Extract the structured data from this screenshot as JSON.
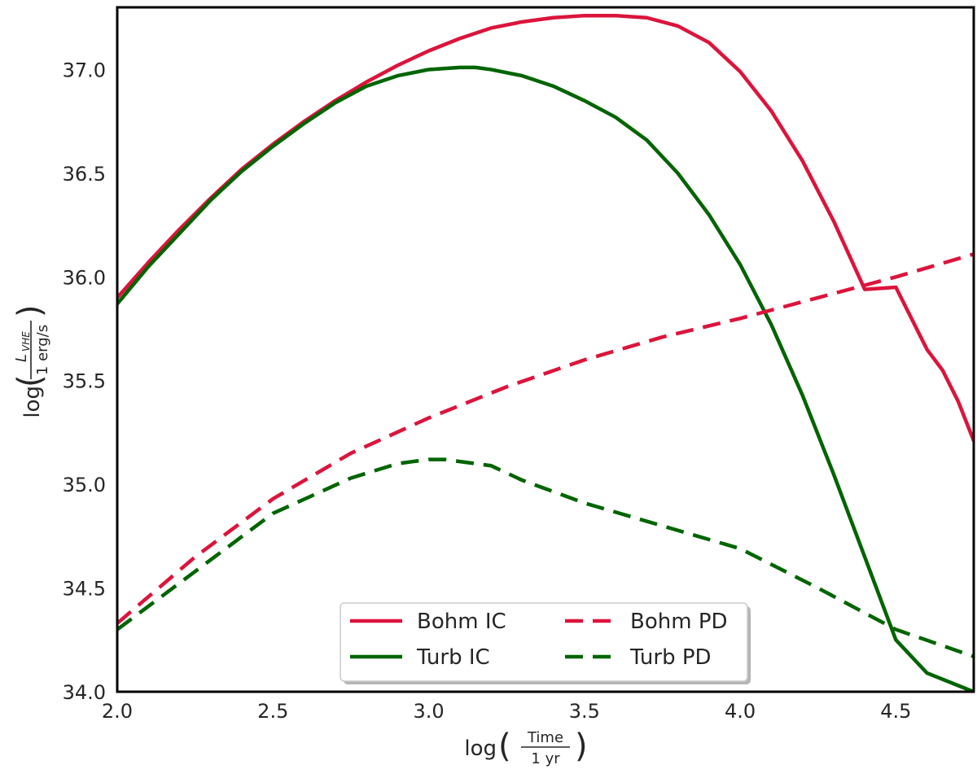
{
  "chart_data": {
    "type": "line",
    "title": "",
    "xlabel": {
      "prefix": "log",
      "numerator": "Time",
      "denominator": "1 yr"
    },
    "ylabel": {
      "prefix": "log",
      "numerator_base": "L",
      "numerator_subscript": "VHE",
      "denominator": "1 erg/s"
    },
    "xlim": [
      2.0,
      4.75
    ],
    "ylim": [
      34.0,
      37.3
    ],
    "xticks": [
      2.0,
      2.5,
      3.0,
      3.5,
      4.0,
      4.5
    ],
    "xtick_labels": [
      "2.0",
      "2.5",
      "3.0",
      "3.5",
      "4.0",
      "4.5"
    ],
    "yticks": [
      34.0,
      34.5,
      35.0,
      35.5,
      36.0,
      36.5,
      37.0
    ],
    "ytick_labels": [
      "34.0",
      "34.5",
      "35.0",
      "35.5",
      "36.0",
      "36.5",
      "37.0"
    ],
    "grid": false,
    "legend_placement": "lower-center",
    "legend_columns": 2,
    "series": [
      {
        "name": "Bohm IC",
        "color": "#dc143c",
        "dash": "solid",
        "x": [
          2.0,
          2.1,
          2.2,
          2.3,
          2.4,
          2.5,
          2.6,
          2.7,
          2.8,
          2.9,
          3.0,
          3.1,
          3.2,
          3.3,
          3.4,
          3.5,
          3.6,
          3.7,
          3.8,
          3.9,
          4.0,
          4.1,
          4.2,
          4.3,
          4.4,
          4.5,
          4.55,
          4.6,
          4.65,
          4.7,
          4.75
        ],
        "y": [
          35.9,
          36.07,
          36.23,
          36.38,
          36.52,
          36.64,
          36.75,
          36.85,
          36.94,
          37.02,
          37.09,
          37.15,
          37.2,
          37.23,
          37.25,
          37.26,
          37.26,
          37.25,
          37.21,
          37.13,
          36.99,
          36.8,
          36.56,
          36.27,
          35.94,
          35.95,
          35.8,
          35.65,
          35.55,
          35.4,
          35.21
        ]
      },
      {
        "name": "Turb IC",
        "color": "#006400",
        "dash": "solid",
        "x": [
          2.0,
          2.1,
          2.2,
          2.3,
          2.4,
          2.5,
          2.6,
          2.7,
          2.8,
          2.9,
          3.0,
          3.1,
          3.15,
          3.2,
          3.3,
          3.4,
          3.5,
          3.6,
          3.7,
          3.8,
          3.9,
          4.0,
          4.1,
          4.2,
          4.3,
          4.4,
          4.5,
          4.6,
          4.7,
          4.75
        ],
        "y": [
          35.87,
          36.05,
          36.21,
          36.37,
          36.51,
          36.63,
          36.74,
          36.84,
          36.92,
          36.97,
          37.0,
          37.01,
          37.01,
          37.0,
          36.97,
          36.92,
          36.85,
          36.77,
          36.66,
          36.5,
          36.3,
          36.06,
          35.77,
          35.43,
          35.05,
          34.65,
          34.25,
          34.09,
          34.03,
          34.0
        ]
      },
      {
        "name": "Bohm PD",
        "color": "#dc143c",
        "dash": "dashed",
        "x": [
          2.0,
          2.25,
          2.5,
          2.75,
          3.0,
          3.25,
          3.5,
          3.75,
          4.0,
          4.25,
          4.5,
          4.75
        ],
        "y": [
          34.33,
          34.65,
          34.93,
          35.15,
          35.32,
          35.47,
          35.6,
          35.71,
          35.8,
          35.9,
          36.0,
          36.11
        ]
      },
      {
        "name": "Turb PD",
        "color": "#006400",
        "dash": "dashed",
        "x": [
          2.0,
          2.25,
          2.5,
          2.75,
          2.9,
          3.0,
          3.05,
          3.1,
          3.2,
          3.3,
          3.5,
          3.75,
          4.0,
          4.25,
          4.5,
          4.75
        ],
        "y": [
          34.3,
          34.58,
          34.86,
          35.03,
          35.1,
          35.12,
          35.12,
          35.11,
          35.09,
          35.02,
          34.91,
          34.8,
          34.69,
          34.5,
          34.3,
          34.17
        ]
      }
    ]
  }
}
